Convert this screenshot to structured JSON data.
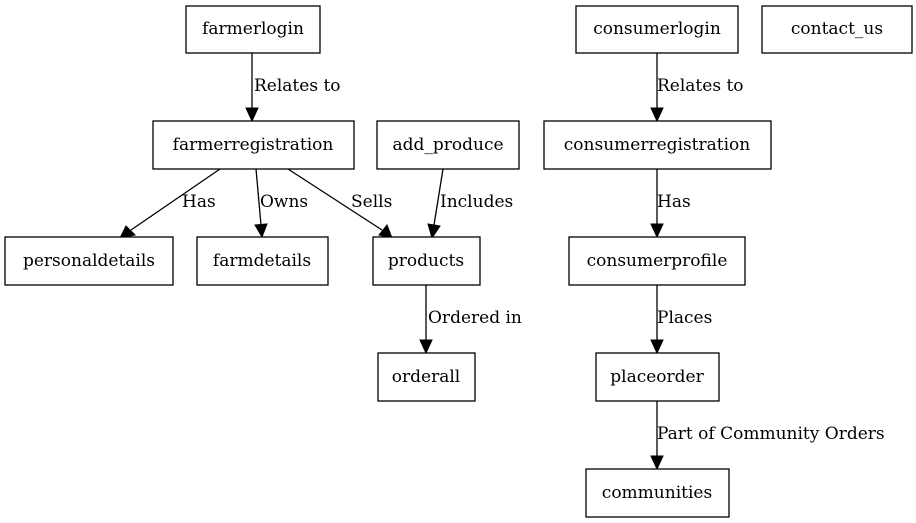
{
  "nodes": {
    "farmerlogin": "farmerlogin",
    "farmerregistration": "farmerregistration",
    "add_produce": "add_produce",
    "personaldetails": "personaldetails",
    "farmdetails": "farmdetails",
    "products": "products",
    "orderall": "orderall",
    "consumerlogin": "consumerlogin",
    "contact_us": "contact_us",
    "consumerregistration": "consumerregistration",
    "consumerprofile": "consumerprofile",
    "placeorder": "placeorder",
    "communities": "communities"
  },
  "edges": {
    "farmerlogin_farmerregistration": "Relates to",
    "farmerregistration_personaldetails": "Has",
    "farmerregistration_farmdetails": "Owns",
    "farmerregistration_products": "Sells",
    "add_produce_products": "Includes",
    "products_orderall": "Ordered in",
    "consumerlogin_consumerregistration": "Relates to",
    "consumerregistration_consumerprofile": "Has",
    "consumerprofile_placeorder": "Places",
    "placeorder_communities": "Part of Community Orders"
  }
}
